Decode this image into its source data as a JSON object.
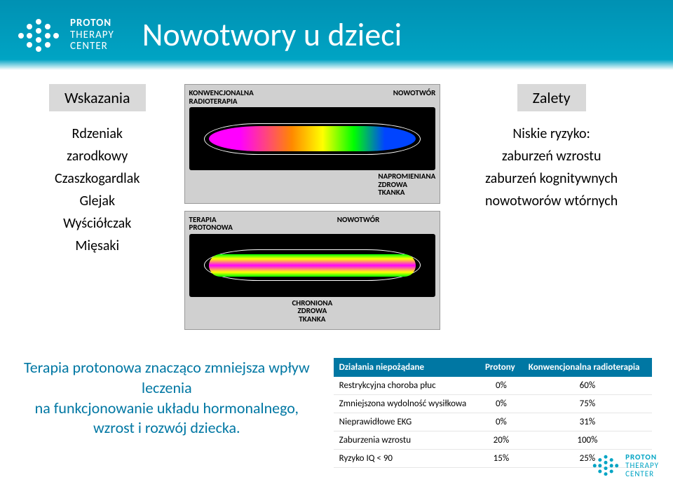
{
  "brand": {
    "line1": "PROTON",
    "line2": "THERAPY",
    "line3": "CENTER"
  },
  "title": "Nowotwory u dzieci",
  "left": {
    "heading": "Wskazania",
    "items": [
      "Rdzeniak",
      "zarodkowy",
      "Czaszkogardlak",
      "Glejak",
      "Wyściółczak",
      "Mięsaki"
    ]
  },
  "right": {
    "heading": "Zalety",
    "items": [
      "Niskie ryzyko:",
      "zaburzeń wzrostu",
      "zaburzeń kognitywnych",
      "nowotworów wtórnych"
    ]
  },
  "scan": {
    "conv": {
      "caption_top": "KONWENCJONALNA\nRADIOTERAPIA",
      "caption_tumor": "NOWOTWÓR",
      "caption_tissue": "NAPROMIENIANA\nZDROWA\nTKANKA"
    },
    "prot": {
      "caption_top": "TERAPIA\nPROTONOWA",
      "caption_tumor": "NOWOTWÓR",
      "caption_tissue": "CHRONIONA\nZDROWA\nTKANKA"
    }
  },
  "statement": "Terapia protonowa znacząco zmniejsza wpływ leczenia\nna funkcjonowanie układu hormonalnego, wzrost i rozwój dziecka.",
  "table": {
    "headers": [
      "Działania niepożądane",
      "Protony",
      "Konwencjonalna radioterapia"
    ],
    "rows": [
      [
        "Restrykcyjna choroba płuc",
        "0%",
        "60%"
      ],
      [
        "Zmniejszona wydolność wysiłkowa",
        "0%",
        "75%"
      ],
      [
        "Nieprawidłowe EKG",
        "0%",
        "31%"
      ],
      [
        "Zaburzenia wzrostu",
        "20%",
        "100%"
      ],
      [
        "Ryzyko IQ < 90",
        "15%",
        "25%"
      ]
    ]
  },
  "colors": {
    "brand_teal": "#0091b3",
    "statement": "#0077a3",
    "label_bg": "#d9d9d9",
    "table_header": "#0077a3"
  }
}
